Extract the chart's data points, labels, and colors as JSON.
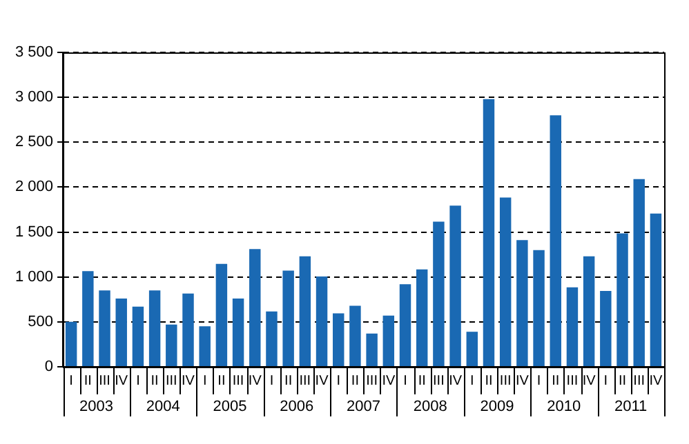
{
  "chart_data": {
    "type": "bar",
    "categories": [
      "I",
      "II",
      "III",
      "IV",
      "I",
      "II",
      "III",
      "IV",
      "I",
      "II",
      "III",
      "IV",
      "I",
      "II",
      "III",
      "IV",
      "I",
      "II",
      "III",
      "IV",
      "I",
      "II",
      "III",
      "IV",
      "I",
      "II",
      "III",
      "IV",
      "I",
      "II",
      "III",
      "IV",
      "I",
      "II",
      "III",
      "IV"
    ],
    "values": [
      500,
      1065,
      850,
      760,
      670,
      850,
      470,
      815,
      450,
      1145,
      760,
      1310,
      615,
      1070,
      1230,
      1005,
      595,
      680,
      370,
      570,
      920,
      1085,
      1615,
      1795,
      390,
      2980,
      1885,
      1410,
      1300,
      2800,
      885,
      1230,
      845,
      1485,
      2090,
      1705
    ],
    "color": "#1a69b3",
    "ylim": [
      0,
      3500
    ],
    "yticks": [
      0,
      500,
      {
        "value": 1000,
        "label": "1 000"
      },
      {
        "value": 1500,
        "label": "1 500"
      },
      {
        "value": 2000,
        "label": "2 000"
      },
      {
        "value": 2500,
        "label": "2 500"
      },
      {
        "value": 3000,
        "label": "3 000"
      },
      {
        "value": 3500,
        "label": "3 500"
      }
    ],
    "grid": "y",
    "annotations": [
      "2003",
      "2004",
      "2005",
      "2006",
      "2007",
      "2008",
      "2009",
      "2010",
      "2011"
    ]
  }
}
